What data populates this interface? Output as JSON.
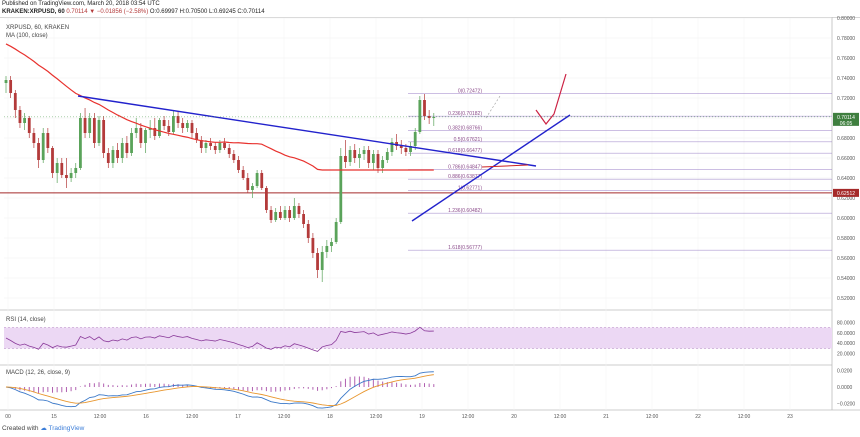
{
  "header": {
    "published": "Published on TradingView.com, March 20, 2018 03:54 UTC",
    "quote_symbol": "KRAKEN:XRPUSD, 60",
    "quote_change": "0.70114 ▼ −0.01856 (−2.58%)",
    "quote_ohlc": "O:0.69997 H:0.70500 L:0.69245 C:0.70114"
  },
  "legend": {
    "symbol_line": "XRPUSD, 60, KRAKEN",
    "ma_line": "MA (100, close)"
  },
  "price_axis": {
    "ticks": [
      "0.80000",
      "0.78000",
      "0.76000",
      "0.74000",
      "0.72000",
      "0.70000",
      "0.68000",
      "0.66000",
      "0.64000",
      "0.62000",
      "0.60000",
      "0.58000",
      "0.56000",
      "0.54000",
      "0.52000"
    ],
    "current_price": "0.70114",
    "current_countdown": "06:05",
    "hline_price": "0.62512"
  },
  "fib_levels": [
    {
      "label": "0(0.72472)",
      "value": 0.72472
    },
    {
      "label": "0.236(0.70182)",
      "value": 0.70182
    },
    {
      "label": "0.382(0.68766)",
      "value": 0.68766
    },
    {
      "label": "0.5(0.67621)",
      "value": 0.67621
    },
    {
      "label": "0.618(0.66477)",
      "value": 0.66477
    },
    {
      "label": "0.786(0.64847)",
      "value": 0.64847
    },
    {
      "label": "0.886(0.63877)",
      "value": 0.63877
    },
    {
      "label": "1(0.62771)",
      "value": 0.62771
    },
    {
      "label": "1.236(0.60482)",
      "value": 0.60482
    },
    {
      "label": "1.618(0.56777)",
      "value": 0.56777
    }
  ],
  "rsi": {
    "title": "RSI (14, close)",
    "ticks": [
      "80.0000",
      "60.0000",
      "40.0000",
      "20.0000"
    ]
  },
  "macd": {
    "title": "MACD (12, 26, close, 9)",
    "ticks": [
      "0.0200",
      "0.0000",
      "−0.0200"
    ]
  },
  "time_axis": {
    "labels": [
      "00",
      "15",
      "12:00",
      "16",
      "12:00",
      "17",
      "12:00",
      "18",
      "12:00",
      "19",
      "12:00",
      "20",
      "12:00",
      "21",
      "12:00",
      "22",
      "12:00",
      "23"
    ]
  },
  "footer": {
    "created_with": "Created with",
    "brand": "TradingView"
  },
  "colors": {
    "up": "#5aa35a",
    "down": "#b33a3a",
    "ma": "#e8322e",
    "trendline": "#2222cc",
    "hline": "#a52a2a",
    "rsi_fill": "#ecd8f4",
    "macd_line": "#3a78c8",
    "signal_line": "#e8962e",
    "hist": "#b060b0"
  },
  "chart_data": {
    "type": "candlestick",
    "ylim": [
      0.52,
      0.8
    ],
    "candles": [
      [
        0.735,
        0.742,
        0.725,
        0.738
      ],
      [
        0.738,
        0.742,
        0.72,
        0.725
      ],
      [
        0.725,
        0.728,
        0.7,
        0.708
      ],
      [
        0.708,
        0.712,
        0.69,
        0.695
      ],
      [
        0.695,
        0.705,
        0.688,
        0.7
      ],
      [
        0.7,
        0.702,
        0.68,
        0.685
      ],
      [
        0.685,
        0.69,
        0.67,
        0.675
      ],
      [
        0.675,
        0.68,
        0.65,
        0.658
      ],
      [
        0.658,
        0.69,
        0.655,
        0.685
      ],
      [
        0.685,
        0.69,
        0.665,
        0.67
      ],
      [
        0.67,
        0.672,
        0.64,
        0.645
      ],
      [
        0.645,
        0.66,
        0.635,
        0.655
      ],
      [
        0.655,
        0.66,
        0.64,
        0.643
      ],
      [
        0.643,
        0.66,
        0.63,
        0.64
      ],
      [
        0.64,
        0.65,
        0.636,
        0.645
      ],
      [
        0.645,
        0.655,
        0.64,
        0.65
      ],
      [
        0.65,
        0.705,
        0.648,
        0.7
      ],
      [
        0.7,
        0.71,
        0.68,
        0.685
      ],
      [
        0.685,
        0.705,
        0.68,
        0.7
      ],
      [
        0.7,
        0.705,
        0.67,
        0.675
      ],
      [
        0.675,
        0.702,
        0.672,
        0.698
      ],
      [
        0.698,
        0.702,
        0.66,
        0.665
      ],
      [
        0.665,
        0.67,
        0.65,
        0.655
      ],
      [
        0.655,
        0.672,
        0.65,
        0.668
      ],
      [
        0.668,
        0.675,
        0.655,
        0.66
      ],
      [
        0.66,
        0.68,
        0.655,
        0.675
      ],
      [
        0.675,
        0.682,
        0.66,
        0.665
      ],
      [
        0.665,
        0.69,
        0.662,
        0.685
      ],
      [
        0.685,
        0.7,
        0.68,
        0.69
      ],
      [
        0.69,
        0.695,
        0.67,
        0.675
      ],
      [
        0.675,
        0.69,
        0.665,
        0.688
      ],
      [
        0.688,
        0.698,
        0.68,
        0.69
      ],
      [
        0.69,
        0.7,
        0.678,
        0.682
      ],
      [
        0.682,
        0.7,
        0.68,
        0.698
      ],
      [
        0.698,
        0.702,
        0.688,
        0.692
      ],
      [
        0.692,
        0.698,
        0.682,
        0.686
      ],
      [
        0.686,
        0.708,
        0.684,
        0.702
      ],
      [
        0.702,
        0.706,
        0.69,
        0.695
      ],
      [
        0.695,
        0.7,
        0.685,
        0.69
      ],
      [
        0.69,
        0.698,
        0.686,
        0.695
      ],
      [
        0.695,
        0.698,
        0.68,
        0.685
      ],
      [
        0.685,
        0.69,
        0.675,
        0.678
      ],
      [
        0.678,
        0.682,
        0.665,
        0.67
      ],
      [
        0.67,
        0.678,
        0.665,
        0.675
      ],
      [
        0.675,
        0.68,
        0.668,
        0.672
      ],
      [
        0.672,
        0.676,
        0.664,
        0.668
      ],
      [
        0.668,
        0.678,
        0.665,
        0.675
      ],
      [
        0.675,
        0.68,
        0.668,
        0.67
      ],
      [
        0.67,
        0.674,
        0.66,
        0.664
      ],
      [
        0.664,
        0.668,
        0.655,
        0.658
      ],
      [
        0.658,
        0.662,
        0.645,
        0.648
      ],
      [
        0.648,
        0.652,
        0.638,
        0.64
      ],
      [
        0.64,
        0.645,
        0.625,
        0.628
      ],
      [
        0.628,
        0.635,
        0.62,
        0.632
      ],
      [
        0.632,
        0.648,
        0.63,
        0.645
      ],
      [
        0.645,
        0.648,
        0.628,
        0.63
      ],
      [
        0.63,
        0.632,
        0.605,
        0.608
      ],
      [
        0.608,
        0.612,
        0.595,
        0.598
      ],
      [
        0.598,
        0.61,
        0.596,
        0.606
      ],
      [
        0.606,
        0.612,
        0.598,
        0.6
      ],
      [
        0.6,
        0.612,
        0.598,
        0.608
      ],
      [
        0.608,
        0.612,
        0.596,
        0.6
      ],
      [
        0.6,
        0.62,
        0.598,
        0.612
      ],
      [
        0.612,
        0.615,
        0.6,
        0.604
      ],
      [
        0.604,
        0.608,
        0.59,
        0.594
      ],
      [
        0.594,
        0.598,
        0.575,
        0.58
      ],
      [
        0.58,
        0.585,
        0.56,
        0.565
      ],
      [
        0.565,
        0.57,
        0.54,
        0.548
      ],
      [
        0.548,
        0.572,
        0.536,
        0.566
      ],
      [
        0.566,
        0.578,
        0.56,
        0.572
      ],
      [
        0.572,
        0.58,
        0.566,
        0.576
      ],
      [
        0.576,
        0.6,
        0.574,
        0.596
      ],
      [
        0.596,
        0.67,
        0.594,
        0.662
      ],
      [
        0.662,
        0.678,
        0.65,
        0.656
      ],
      [
        0.656,
        0.672,
        0.652,
        0.668
      ],
      [
        0.668,
        0.674,
        0.655,
        0.66
      ],
      [
        0.66,
        0.67,
        0.65,
        0.664
      ],
      [
        0.664,
        0.672,
        0.658,
        0.668
      ],
      [
        0.668,
        0.672,
        0.65,
        0.655
      ],
      [
        0.655,
        0.668,
        0.648,
        0.664
      ],
      [
        0.664,
        0.668,
        0.645,
        0.65
      ],
      [
        0.65,
        0.662,
        0.645,
        0.658
      ],
      [
        0.658,
        0.67,
        0.655,
        0.666
      ],
      [
        0.666,
        0.68,
        0.662,
        0.676
      ],
      [
        0.676,
        0.684,
        0.668,
        0.672
      ],
      [
        0.672,
        0.678,
        0.664,
        0.67
      ],
      [
        0.67,
        0.674,
        0.662,
        0.666
      ],
      [
        0.666,
        0.676,
        0.662,
        0.672
      ],
      [
        0.672,
        0.69,
        0.668,
        0.686
      ],
      [
        0.686,
        0.722,
        0.684,
        0.718
      ],
      [
        0.718,
        0.724,
        0.698,
        0.702
      ],
      [
        0.702,
        0.708,
        0.694,
        0.7
      ],
      [
        0.7,
        0.705,
        0.692,
        0.701
      ]
    ]
  }
}
